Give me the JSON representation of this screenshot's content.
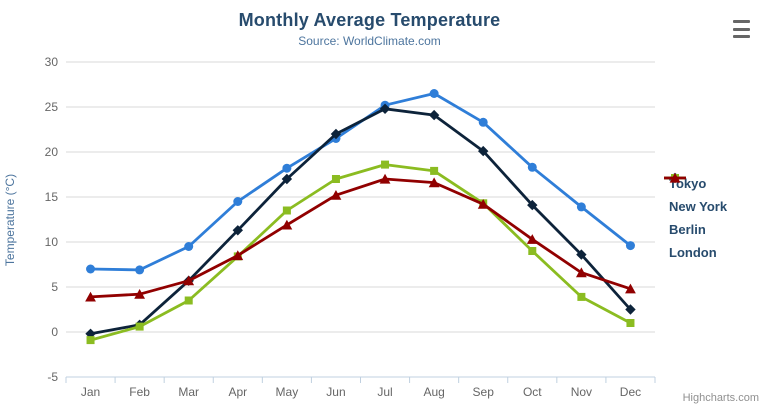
{
  "credits": {
    "label": "Highcharts.com"
  },
  "context_button": {
    "icon": "hamburger-icon"
  },
  "chart_data": {
    "type": "line",
    "title": "Monthly Average Temperature",
    "subtitle": "Source: WorldClimate.com",
    "xlabel": "",
    "ylabel": "Temperature (°C)",
    "categories": [
      "Jan",
      "Feb",
      "Mar",
      "Apr",
      "May",
      "Jun",
      "Jul",
      "Aug",
      "Sep",
      "Oct",
      "Nov",
      "Dec"
    ],
    "ylim": [
      -5,
      30
    ],
    "yticks": [
      30,
      25,
      20,
      15,
      10,
      5,
      0,
      -5
    ],
    "grid": true,
    "legend_position": "right-middle",
    "series": [
      {
        "name": "Tokyo",
        "color": "#2f7ed8",
        "marker": "circle",
        "values": [
          7.0,
          6.9,
          9.5,
          14.5,
          18.2,
          21.5,
          25.2,
          26.5,
          23.3,
          18.3,
          13.9,
          9.6
        ]
      },
      {
        "name": "New York",
        "color": "#0d233a",
        "marker": "diamond",
        "values": [
          -0.2,
          0.8,
          5.7,
          11.3,
          17.0,
          22.0,
          24.8,
          24.1,
          20.1,
          14.1,
          8.6,
          2.5
        ]
      },
      {
        "name": "Berlin",
        "color": "#8bbc21",
        "marker": "square",
        "values": [
          -0.9,
          0.6,
          3.5,
          8.4,
          13.5,
          17.0,
          18.6,
          17.9,
          14.3,
          9.0,
          3.9,
          1.0
        ]
      },
      {
        "name": "London",
        "color": "#910000",
        "marker": "triangle",
        "values": [
          3.9,
          4.2,
          5.7,
          8.5,
          11.9,
          15.2,
          17.0,
          16.6,
          14.2,
          10.3,
          6.6,
          4.8
        ]
      }
    ],
    "colors": {
      "title": "#274b6d",
      "subtitle": "#4d759e",
      "axis_label": "#666666",
      "axis_line": "#c0d0e0",
      "gridline": "#d8d8d8",
      "legend_text": "#274b6d",
      "credits": "#909090"
    }
  }
}
